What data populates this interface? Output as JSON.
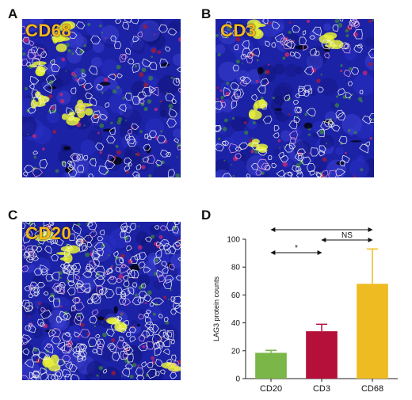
{
  "panels": [
    {
      "letter": "A",
      "marker": "CD68",
      "seed": 11,
      "outline_density": 130,
      "yellow_blobs": 6
    },
    {
      "letter": "B",
      "marker": "CD3",
      "seed": 23,
      "outline_density": 150,
      "yellow_blobs": 4
    },
    {
      "letter": "C",
      "marker": "CD20",
      "seed": 37,
      "outline_density": 320,
      "yellow_blobs": 5
    }
  ],
  "chart_panel_letter": "D",
  "chart_data": {
    "type": "bar",
    "categories": [
      "CD20",
      "CD3",
      "CD68"
    ],
    "values": [
      18.5,
      34,
      68
    ],
    "errors": [
      1.8,
      5,
      25
    ],
    "colors": [
      "#7ab648",
      "#b5103a",
      "#eebb22"
    ],
    "ylabel": "LAG3 protein counts",
    "xlabel": "",
    "ylim": [
      0,
      100
    ],
    "yticks": [
      0,
      20,
      40,
      60,
      80,
      100
    ],
    "significance": [
      {
        "from": "CD20",
        "to": "CD68",
        "label": "**"
      },
      {
        "from": "CD3",
        "to": "CD68",
        "label": "NS"
      },
      {
        "from": "CD20",
        "to": "CD3",
        "label": "*"
      }
    ]
  }
}
